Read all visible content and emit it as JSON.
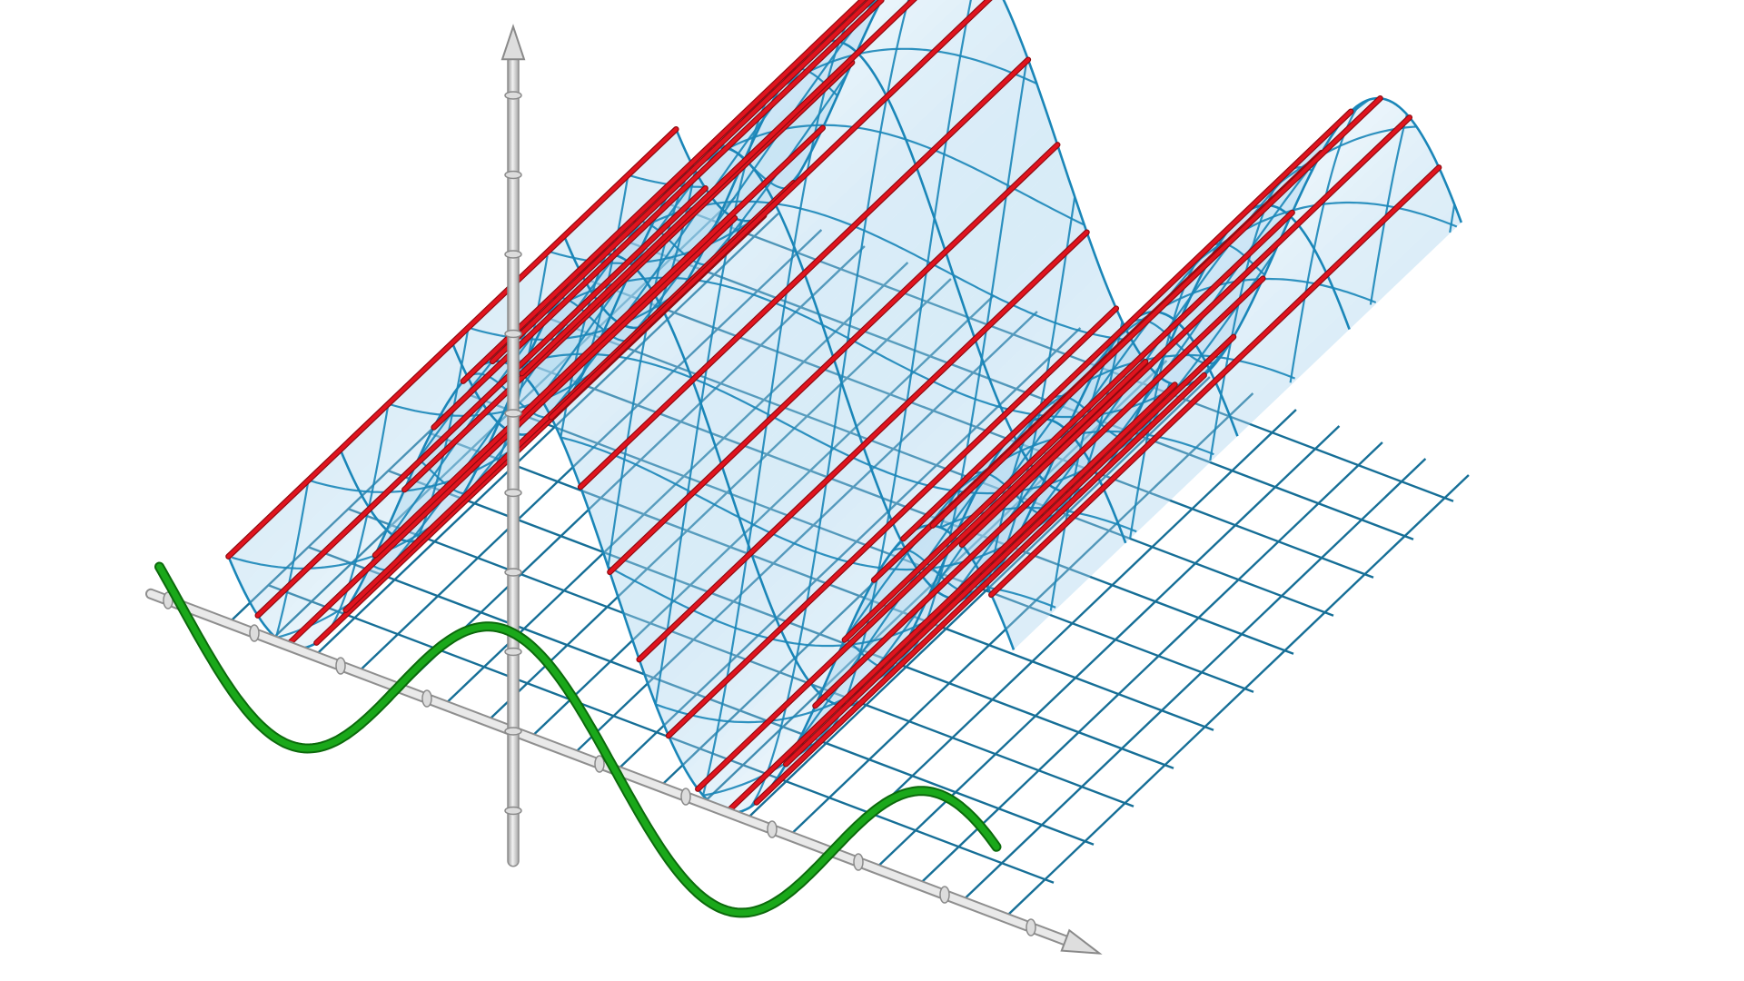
{
  "diagram": {
    "kind": "3d-surface-cylinder-over-curve",
    "colors": {
      "background": "#ffffff",
      "surface_fill": "#a9d4ee",
      "surface_mesh": "#1a86b8",
      "rulings": "#e0141e",
      "base_curve": "#1aa81a",
      "floor_grid": "#166f97",
      "axes": "#c4c4c4",
      "axes_highlight": "#ffffff"
    },
    "icons": [
      "z-axis-arrow-icon",
      "x-axis-arrow-icon"
    ],
    "legend": false,
    "grid": true
  }
}
